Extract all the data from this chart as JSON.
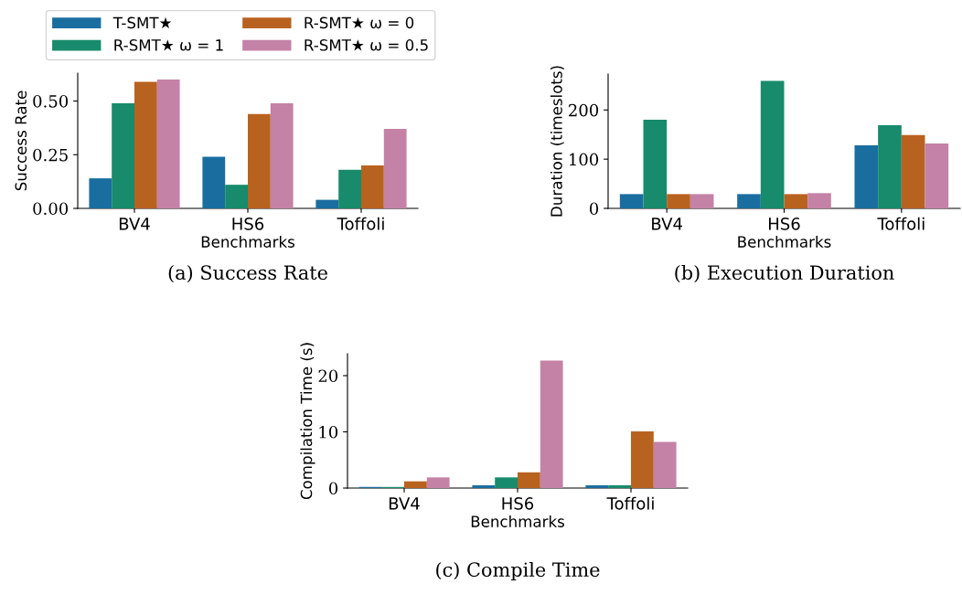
{
  "chart_data": [
    {
      "type": "bar",
      "categories": [
        "BV4",
        "HS6",
        "Toffoli"
      ],
      "xlabel": "Benchmarks",
      "ylabel": "Success Rate",
      "ylim": [
        0,
        0.63
      ],
      "yticks": [
        {
          "value": 0,
          "label": "0.00"
        },
        {
          "value": 0.25,
          "label": "0.25"
        },
        {
          "value": 0.5,
          "label": "0.50"
        }
      ],
      "grid": false,
      "legend": "top left",
      "annotations": [
        "(a) Success Rate"
      ],
      "series": [
        {
          "name": "T-SMT★",
          "color": "#1a6e9f",
          "values": [
            0.14,
            0.24,
            0.04
          ]
        },
        {
          "name": "R-SMT★ ω = 1",
          "color": "#178b6b",
          "values": [
            0.49,
            0.11,
            0.18
          ]
        },
        {
          "name": "R-SMT★ ω = 0",
          "color": "#b8621f",
          "values": [
            0.59,
            0.44,
            0.2
          ]
        },
        {
          "name": "R-SMT★ ω = 0.5",
          "color": "#c482a6",
          "values": [
            0.6,
            0.49,
            0.37
          ]
        }
      ]
    },
    {
      "type": "bar",
      "categories": [
        "BV4",
        "HS6",
        "Toffoli"
      ],
      "xlabel": "Benchmarks",
      "ylabel": "Duration (timeslots)",
      "ylim": [
        0,
        273
      ],
      "yticks": [
        0,
        100,
        200
      ],
      "grid": false,
      "annotations": [
        "(b) Execution Duration"
      ],
      "series": [
        {
          "color": "#1a6e9f",
          "values": [
            29,
            29,
            128
          ]
        },
        {
          "color": "#178b6b",
          "values": [
            180,
            259,
            169
          ]
        },
        {
          "color": "#b8621f",
          "values": [
            29,
            29,
            149
          ]
        },
        {
          "color": "#c482a6",
          "values": [
            29,
            31,
            132
          ]
        }
      ]
    },
    {
      "type": "bar",
      "categories": [
        "BV4",
        "HS6",
        "Toffoli"
      ],
      "xlabel": "Benchmarks",
      "ylabel": "Compilation Time (s)",
      "ylim": [
        0,
        23.9
      ],
      "yticks": [
        0,
        10,
        20
      ],
      "grid": false,
      "annotations": [
        "(c) Compile Time"
      ],
      "series": [
        {
          "color": "#1a6e9f",
          "values": [
            0.2,
            0.5,
            0.5
          ]
        },
        {
          "color": "#178b6b",
          "values": [
            0.2,
            1.9,
            0.5
          ]
        },
        {
          "color": "#b8621f",
          "values": [
            1.2,
            2.8,
            10.1
          ]
        },
        {
          "color": "#c482a6",
          "values": [
            1.9,
            22.7,
            8.2
          ]
        }
      ]
    }
  ]
}
